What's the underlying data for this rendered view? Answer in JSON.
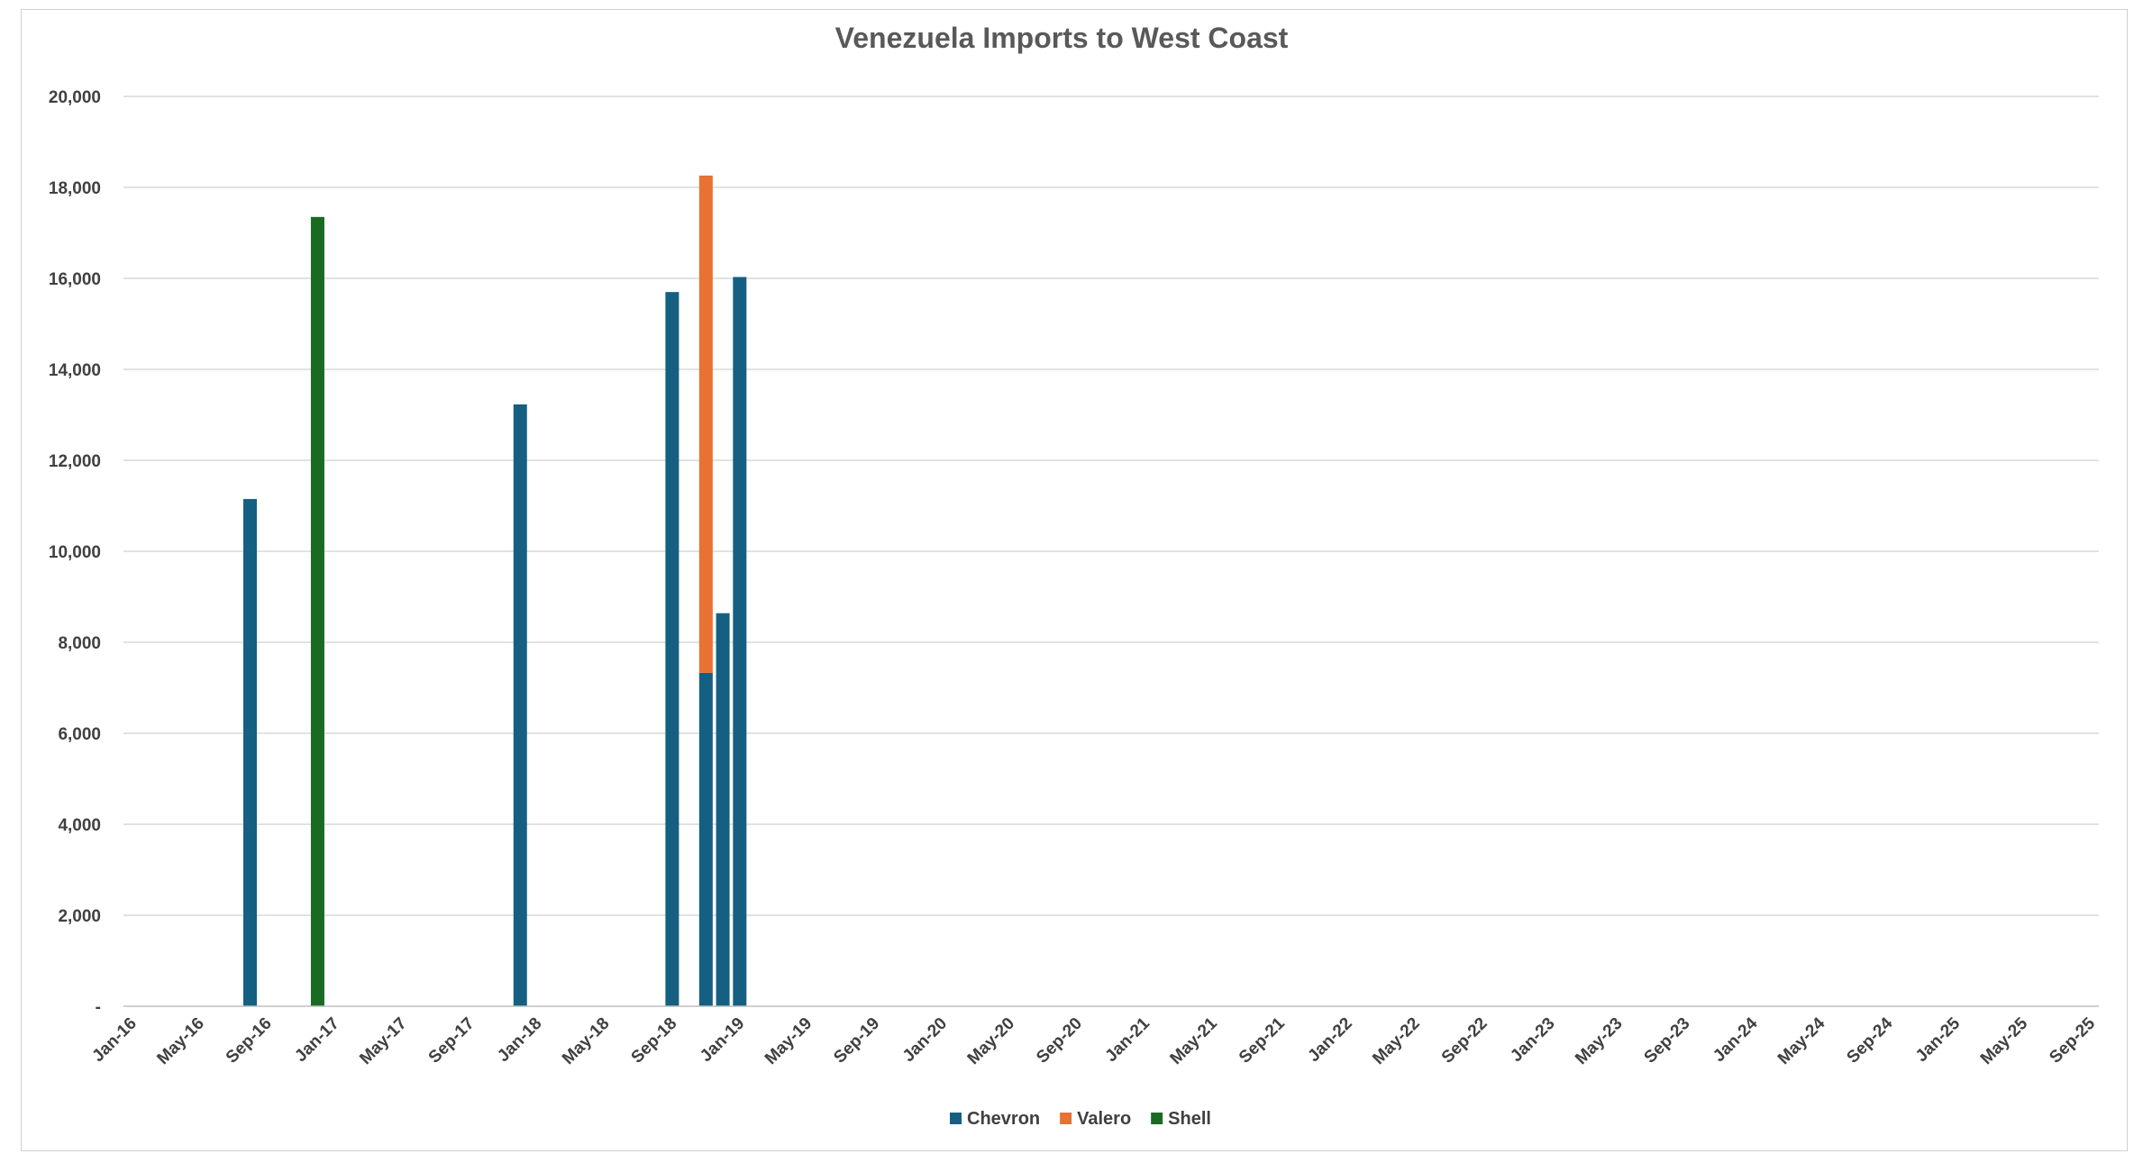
{
  "chart_data": {
    "type": "bar",
    "stacked": true,
    "title": "Venezuela Imports to West Coast",
    "x_start": "Jan-16",
    "x_end": "Sep-25",
    "x_tick_labels": [
      "Jan-16",
      "May-16",
      "Sep-16",
      "Jan-17",
      "May-17",
      "Sep-17",
      "Jan-18",
      "May-18",
      "Sep-18",
      "Jan-19",
      "May-19",
      "Sep-19",
      "Jan-20",
      "May-20",
      "Sep-20",
      "Jan-21",
      "May-21",
      "Sep-21",
      "Jan-22",
      "May-22",
      "Sep-22",
      "Jan-23",
      "May-23",
      "Sep-23",
      "Jan-24",
      "May-24",
      "Sep-24",
      "Jan-25",
      "May-25",
      "Sep-25"
    ],
    "y_tick_labels": [
      "-",
      "2,000",
      "4,000",
      "6,000",
      "8,000",
      "10,000",
      "12,000",
      "14,000",
      "16,000",
      "18,000",
      "20,000"
    ],
    "ylim": [
      0,
      20000
    ],
    "grid": true,
    "legend_position": "bottom",
    "series": [
      {
        "name": "Chevron",
        "color": "#156082",
        "points": [
          {
            "x": "Aug-16",
            "y": 11150
          },
          {
            "x": "Dec-17",
            "y": 13230
          },
          {
            "x": "Sep-18",
            "y": 15700
          },
          {
            "x": "Nov-18",
            "y": 7330
          },
          {
            "x": "Dec-18",
            "y": 8640
          },
          {
            "x": "Jan-19",
            "y": 16030
          }
        ]
      },
      {
        "name": "Valero",
        "color": "#E97132",
        "points": [
          {
            "x": "Nov-18",
            "y": 10930
          }
        ]
      },
      {
        "name": "Shell",
        "color": "#196B24",
        "points": [
          {
            "x": "Dec-16",
            "y": 17350
          }
        ]
      }
    ]
  }
}
